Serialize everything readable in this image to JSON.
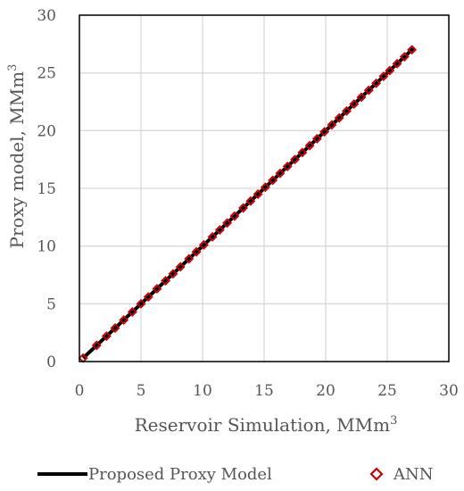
{
  "chart_data": {
    "type": "scatter",
    "xlabel": "Reservoir Simulation, MMm",
    "xlabel_sup": "3",
    "ylabel": "Proxy model, MMm",
    "ylabel_sup": "3",
    "xlim": [
      0,
      30
    ],
    "ylim": [
      0,
      30
    ],
    "xticks": [
      "0",
      "5",
      "10",
      "15",
      "20",
      "25",
      "30"
    ],
    "yticks": [
      "0",
      "5",
      "10",
      "15",
      "20",
      "25",
      "30"
    ],
    "grid": true,
    "legend_position": "bottom",
    "series": [
      {
        "name": "Proposed Proxy Model",
        "kind": "line",
        "color": "#000000",
        "x": [
          0.3,
          27.2
        ],
        "y": [
          0.3,
          27.2
        ]
      },
      {
        "name": "ANN",
        "kind": "marker",
        "marker": "diamond-open",
        "color": "#cc0000",
        "x": [
          0.3,
          1.4,
          2.2,
          2.9,
          3.6,
          4.3,
          5.0,
          5.6,
          6.3,
          7.0,
          7.6,
          8.2,
          8.9,
          9.5,
          10.1,
          10.8,
          11.4,
          12.0,
          12.6,
          13.3,
          13.9,
          14.5,
          15.1,
          15.7,
          16.3,
          16.9,
          17.5,
          18.1,
          18.7,
          19.3,
          19.9,
          20.5,
          21.1,
          21.7,
          22.3,
          22.9,
          23.5,
          24.1,
          24.7,
          25.2,
          25.8,
          26.4,
          27.0
        ],
        "y": [
          0.3,
          1.4,
          2.2,
          2.9,
          3.6,
          4.3,
          5.0,
          5.6,
          6.3,
          7.0,
          7.6,
          8.2,
          8.9,
          9.5,
          10.1,
          10.8,
          11.4,
          12.0,
          12.6,
          13.3,
          13.9,
          14.5,
          15.1,
          15.7,
          16.3,
          16.9,
          17.5,
          18.1,
          18.7,
          19.3,
          19.9,
          20.5,
          21.1,
          21.7,
          22.3,
          22.9,
          23.5,
          24.1,
          24.7,
          25.2,
          25.8,
          26.4,
          27.0
        ]
      }
    ]
  }
}
